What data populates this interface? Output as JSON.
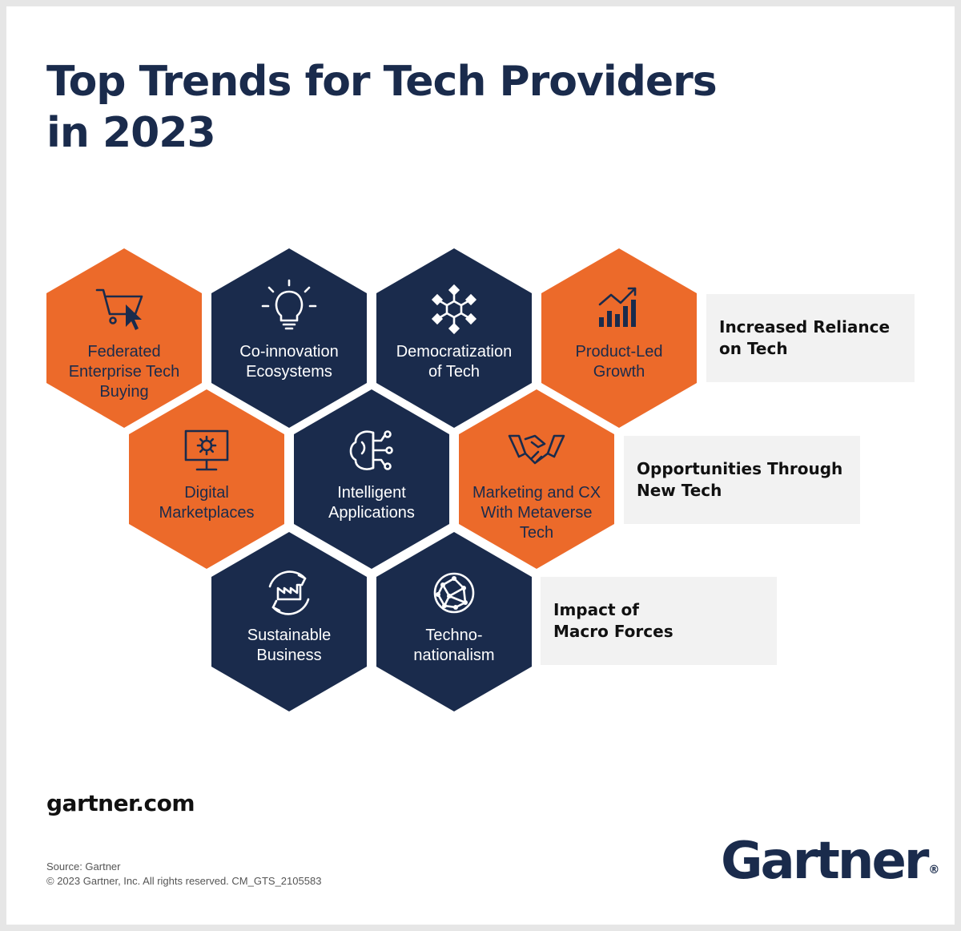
{
  "title": {
    "line1": "Top Trends for Tech Providers",
    "line2": "in 2023"
  },
  "colors": {
    "orange": "#ec6a2a",
    "navy": "#1a2b4c",
    "panel": "#f2f2f2"
  },
  "hexagons": [
    {
      "id": "federated",
      "color": "orange",
      "icon": "shopping-cart-cursor-icon",
      "lines": [
        "Federated",
        "Enterprise Tech",
        "Buying"
      ]
    },
    {
      "id": "coinnovation",
      "color": "navy",
      "icon": "lightbulb-icon",
      "lines": [
        "Co-innovation",
        "Ecosystems"
      ]
    },
    {
      "id": "democratization",
      "color": "navy",
      "icon": "network-hub-icon",
      "lines": [
        "Democratization",
        "of Tech"
      ]
    },
    {
      "id": "productled",
      "color": "orange",
      "icon": "growth-chart-icon",
      "lines": [
        "Product-Led",
        "Growth"
      ]
    },
    {
      "id": "marketplaces",
      "color": "orange",
      "icon": "monitor-gear-icon",
      "lines": [
        "Digital",
        "Marketplaces"
      ]
    },
    {
      "id": "intelligent",
      "color": "navy",
      "icon": "brain-circuit-icon",
      "lines": [
        "Intelligent",
        "Applications"
      ]
    },
    {
      "id": "metaverse",
      "color": "orange",
      "icon": "handshake-icon",
      "lines": [
        "Marketing and CX",
        "With Metaverse",
        "Tech"
      ]
    },
    {
      "id": "sustainable",
      "color": "navy",
      "icon": "recycle-factory-icon",
      "lines": [
        "Sustainable",
        "Business"
      ]
    },
    {
      "id": "techno",
      "color": "navy",
      "icon": "globe-network-icon",
      "lines": [
        "Techno-",
        "nationalism"
      ]
    }
  ],
  "panels": [
    {
      "id": "reliance",
      "lines": [
        "Increased Reliance",
        "on Tech"
      ]
    },
    {
      "id": "opportunities",
      "lines": [
        "Opportunities Through",
        "New Tech"
      ]
    },
    {
      "id": "macro",
      "lines": [
        "Impact of",
        "Macro Forces"
      ]
    }
  ],
  "footer": {
    "site": "gartner.com",
    "source": "Source: Gartner",
    "copyright": "© 2023 Gartner, Inc. All rights reserved. CM_GTS_2105583",
    "logo": "Gartner",
    "logo_mark": "®"
  }
}
